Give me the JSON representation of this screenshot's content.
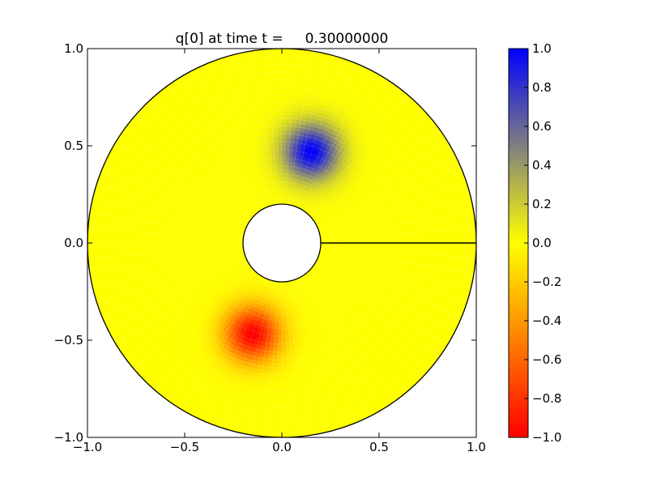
{
  "chart_data": {
    "type": "heatmap",
    "title": "q[0] at time t =     0.30000000",
    "xlabel": "",
    "ylabel": "",
    "xlim": [
      -1.0,
      1.0
    ],
    "ylim": [
      -1.0,
      1.0
    ],
    "x_ticks": [
      -1.0,
      -0.5,
      0.0,
      0.5,
      1.0
    ],
    "y_ticks": [
      -1.0,
      -0.5,
      0.0,
      0.5,
      1.0
    ],
    "x_tick_labels": [
      "−1.0",
      "−0.5",
      "0.0",
      "0.5",
      "1.0"
    ],
    "y_tick_labels": [
      "−1.0",
      "−0.5",
      "0.0",
      "0.5",
      "1.0"
    ],
    "grid": false,
    "domain": {
      "shape": "annulus",
      "inner_radius": 0.2,
      "outer_radius": 1.0,
      "center": [
        0,
        0
      ]
    },
    "cut_line": {
      "from": [
        0.2,
        0.0
      ],
      "to": [
        1.0,
        0.0
      ]
    },
    "field": {
      "background_value": 0.0,
      "blobs": [
        {
          "center": [
            0.15,
            0.47
          ],
          "peak": 1.0,
          "sigma": 0.1
        },
        {
          "center": [
            -0.15,
            -0.47
          ],
          "peak": -1.0,
          "sigma": 0.1
        }
      ]
    },
    "colorbar": {
      "range": [
        -1.0,
        1.0
      ],
      "ticks": [
        -1.0,
        -0.8,
        -0.6,
        -0.4,
        -0.2,
        0.0,
        0.2,
        0.4,
        0.6,
        0.8,
        1.0
      ],
      "tick_labels": [
        "−1.0",
        "−0.8",
        "−0.6",
        "−0.4",
        "−0.2",
        "0.0",
        "0.2",
        "0.4",
        "0.6",
        "0.8",
        "1.0"
      ],
      "colors": {
        "min": "#ff0000",
        "mid": "#ffff00",
        "max": "#0000ff"
      }
    }
  }
}
